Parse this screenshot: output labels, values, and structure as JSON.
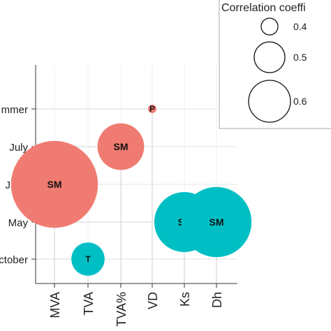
{
  "chart_data": {
    "type": "scatter",
    "title": "",
    "xlabel": "",
    "ylabel": "",
    "x_categories": [
      "MVA",
      "TVA",
      "TVA%",
      "VD",
      "Ks",
      "Dh"
    ],
    "y_categories": [
      "October",
      "May",
      "June",
      "July",
      "Summer"
    ],
    "y_tick_labels_visible": [
      "ctober",
      "May",
      "June",
      "July",
      "mmer"
    ],
    "grid": true,
    "legend": {
      "title": "Correlation coeffi",
      "placement": "top-right",
      "entries": [
        {
          "label": "0.4",
          "value": 0.4
        },
        {
          "label": "0.5",
          "value": 0.5
        },
        {
          "label": "0.6",
          "value": 0.6
        }
      ]
    },
    "points": [
      {
        "x": "VD",
        "y": "Summer",
        "label": "P",
        "size": 0.38,
        "color": "#F07B72"
      },
      {
        "x": "TVA%",
        "y": "July",
        "label": "SM",
        "size": 0.51,
        "color": "#F07B72"
      },
      {
        "x": "MVA",
        "y": "June",
        "label": "SM",
        "size": 0.63,
        "color": "#F07B72"
      },
      {
        "x": "Ks",
        "y": "May",
        "label": "SP",
        "size": 0.55,
        "color": "#00BFC4"
      },
      {
        "x": "Dh",
        "y": "May",
        "label": "SM",
        "size": 0.58,
        "color": "#00BFC4"
      },
      {
        "x": "TVA",
        "y": "October",
        "label": "T",
        "size": 0.47,
        "color": "#00BFC4"
      }
    ]
  }
}
